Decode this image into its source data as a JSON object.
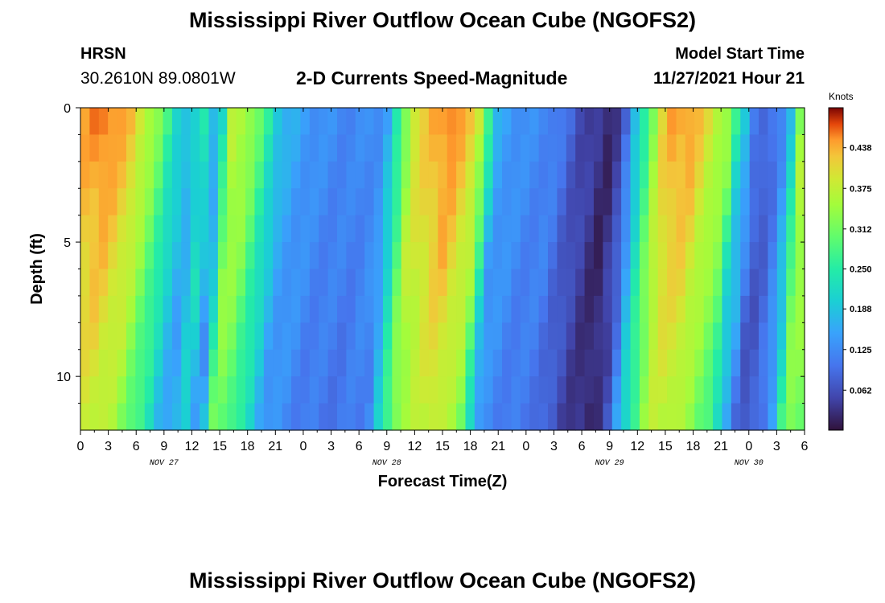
{
  "header": {
    "title": "Mississippi River Outflow Ocean Cube (NGOFS2)",
    "station": "HRSN",
    "coords": "30.2610N  89.0801W",
    "subtitle": "2-D Currents Speed-Magnitude",
    "model_label": "Model Start Time",
    "model_time": "11/27/2021 Hour 21"
  },
  "footer": {
    "title": "Mississippi River Outflow Ocean Cube (NGOFS2)"
  },
  "chart_data": {
    "type": "heatmap",
    "title": "2-D Currents Speed-Magnitude",
    "xlabel": "Forecast Time(Z)",
    "ylabel": "Depth (ft)",
    "x_ticks": [
      "0",
      "3",
      "6",
      "9",
      "12",
      "15",
      "18",
      "21",
      "0",
      "3",
      "6",
      "9",
      "12",
      "15",
      "18",
      "21",
      "0",
      "3",
      "6",
      "9",
      "12",
      "15",
      "18",
      "21",
      "0",
      "3",
      "6"
    ],
    "date_labels": [
      {
        "label": "NOV 27",
        "hour": 9
      },
      {
        "label": "NOV 28",
        "hour": 33
      },
      {
        "label": "NOV 29",
        "hour": 57
      },
      {
        "label": "NOV 30",
        "hour": 72
      }
    ],
    "xlim": [
      0,
      78
    ],
    "y_ticks": [
      "0",
      "5",
      "10"
    ],
    "ylim": [
      0,
      12
    ],
    "y_inverted": true,
    "colorbar": {
      "unit": "Knots",
      "ticks": [
        "0.438",
        "0.375",
        "0.312",
        "0.250",
        "0.188",
        "0.125",
        "0.062"
      ],
      "tick_values": [
        0.438,
        0.375,
        0.312,
        0.25,
        0.188,
        0.125,
        0.062
      ],
      "range": [
        0,
        0.5
      ]
    },
    "surface_speed_profile": {
      "hours": [
        0,
        3,
        6,
        9,
        10.5,
        12,
        13.5,
        15,
        16.5,
        18,
        20,
        22,
        26,
        30,
        33,
        34,
        36,
        40,
        43,
        45,
        48,
        51,
        52.5,
        54,
        57,
        58.5,
        59.5,
        60,
        61,
        62,
        63,
        64,
        66,
        67,
        70,
        71,
        72,
        73,
        74,
        75,
        76,
        77,
        77.5,
        78
      ],
      "speed_knots": [
        0.44,
        0.47,
        0.42,
        0.3,
        0.22,
        0.17,
        0.25,
        0.15,
        0.38,
        0.36,
        0.27,
        0.17,
        0.13,
        0.12,
        0.14,
        0.22,
        0.4,
        0.47,
        0.4,
        0.16,
        0.13,
        0.12,
        0.09,
        0.06,
        0.02,
        0.06,
        0.13,
        0.19,
        0.27,
        0.35,
        0.42,
        0.45,
        0.45,
        0.42,
        0.34,
        0.22,
        0.18,
        0.09,
        0.08,
        0.1,
        0.14,
        0.22,
        0.3,
        0.38
      ]
    }
  }
}
